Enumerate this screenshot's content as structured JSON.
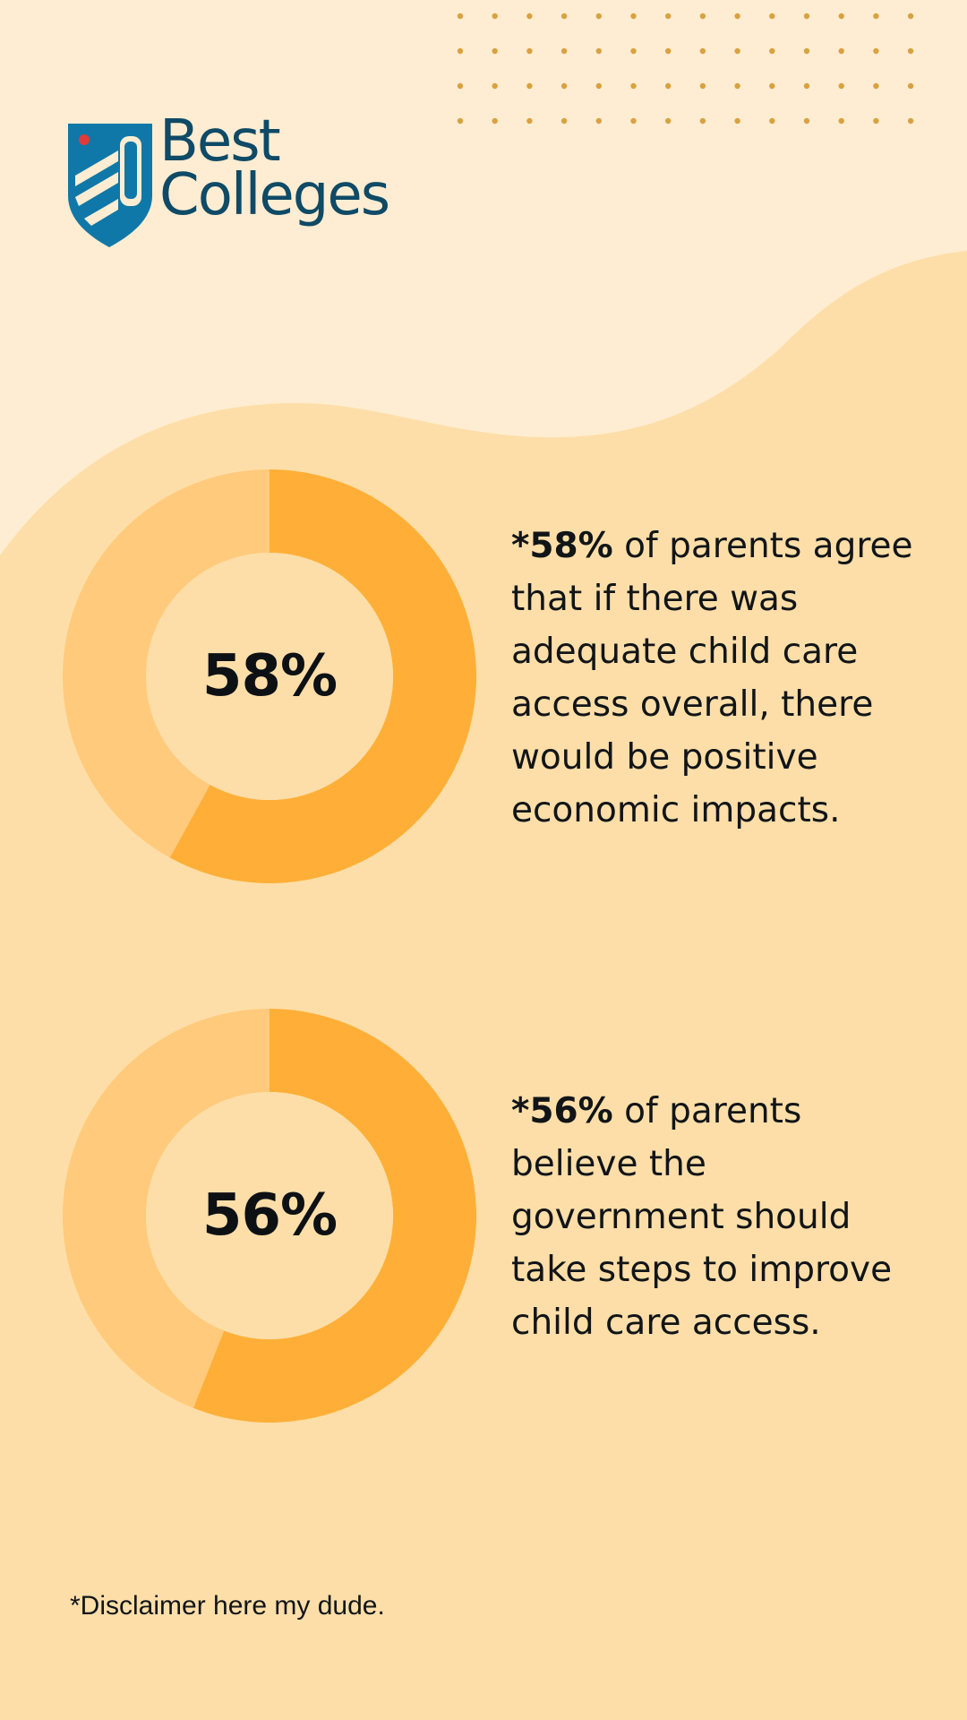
{
  "brand": {
    "line1": "Best",
    "line2": "Colleges"
  },
  "colors": {
    "background": "#FEDEA8",
    "background_light": "#FEEDD2",
    "dots": "#D9A240",
    "donut_fill": "#FFAF37",
    "donut_track": "#FFCA7C",
    "donut_hole": "#FEDEA8",
    "logo_blue": "#0F78A8",
    "logo_navy": "#0F4A66",
    "logo_red": "#E03A3A"
  },
  "stats": [
    {
      "label": "58%",
      "highlight": "*58%",
      "text": " of parents agree that if there was adequate child care access overall, there would be positive economic impacts."
    },
    {
      "label": "56%",
      "highlight": "*56%",
      "text": " of parents believe the government should take steps to improve child care access."
    }
  ],
  "chart_data": [
    {
      "type": "pie",
      "subtype": "donut",
      "values": [
        58,
        42
      ],
      "unit": "%",
      "center_label": "58%"
    },
    {
      "type": "pie",
      "subtype": "donut",
      "values": [
        56,
        44
      ],
      "unit": "%",
      "center_label": "56%"
    }
  ],
  "disclaimer": "*Disclaimer here my dude."
}
